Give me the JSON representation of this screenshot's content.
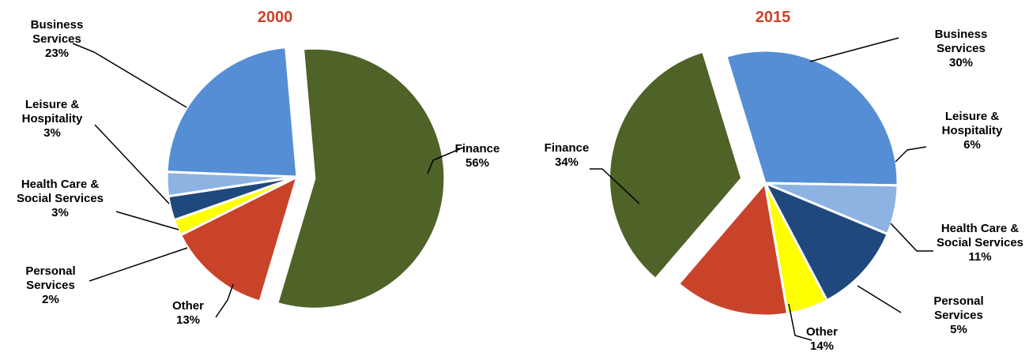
{
  "chart_data": [
    {
      "type": "pie",
      "title": "2000",
      "slices": [
        {
          "label": "Finance",
          "value": 56,
          "pct_label": "56%",
          "label_lines": [
            "Finance",
            "56%"
          ],
          "color": "#4f6228"
        },
        {
          "label": "Other",
          "value": 13,
          "pct_label": "13%",
          "label_lines": [
            "Other",
            "13%"
          ],
          "color": "#c9432b"
        },
        {
          "label": "Personal Services",
          "value": 2,
          "pct_label": "2%",
          "label_lines": [
            "Personal",
            "Services",
            "2%"
          ],
          "color": "#ffff00"
        },
        {
          "label": "Health Care & Social Services",
          "value": 3,
          "pct_label": "3%",
          "label_lines": [
            "Health Care &",
            "Social Services",
            "3%"
          ],
          "color": "#1f497d"
        },
        {
          "label": "Leisure & Hospitality",
          "value": 3,
          "pct_label": "3%",
          "label_lines": [
            "Leisure &",
            "Hospitality",
            "3%"
          ],
          "color": "#8db3e2"
        },
        {
          "label": "Business Services",
          "value": 23,
          "pct_label": "23%",
          "label_lines": [
            "Business",
            "Services",
            "23%"
          ],
          "color": "#558ed5"
        }
      ]
    },
    {
      "type": "pie",
      "title": "2015",
      "slices": [
        {
          "label": "Business Services",
          "value": 30,
          "pct_label": "30%",
          "label_lines": [
            "Business",
            "Services",
            "30%"
          ],
          "color": "#558ed5"
        },
        {
          "label": "Leisure & Hospitality",
          "value": 6,
          "pct_label": "6%",
          "label_lines": [
            "Leisure &",
            "Hospitality",
            "6%"
          ],
          "color": "#8db3e2"
        },
        {
          "label": "Health Care & Social Services",
          "value": 11,
          "pct_label": "11%",
          "label_lines": [
            "Health Care &",
            "Social Services",
            "11%"
          ],
          "color": "#1f497d"
        },
        {
          "label": "Personal Services",
          "value": 5,
          "pct_label": "5%",
          "label_lines": [
            "Personal",
            "Services",
            "5%"
          ],
          "color": "#ffff00"
        },
        {
          "label": "Other",
          "value": 14,
          "pct_label": "14%",
          "label_lines": [
            "Other",
            "14%"
          ],
          "color": "#c9432b"
        },
        {
          "label": "Finance",
          "value": 34,
          "pct_label": "34%",
          "label_lines": [
            "Finance",
            "34%"
          ],
          "color": "#4f6228"
        }
      ]
    }
  ],
  "colors": {
    "title": "#c9432b",
    "leader": "#000000",
    "slice_border": "#ffffff"
  }
}
